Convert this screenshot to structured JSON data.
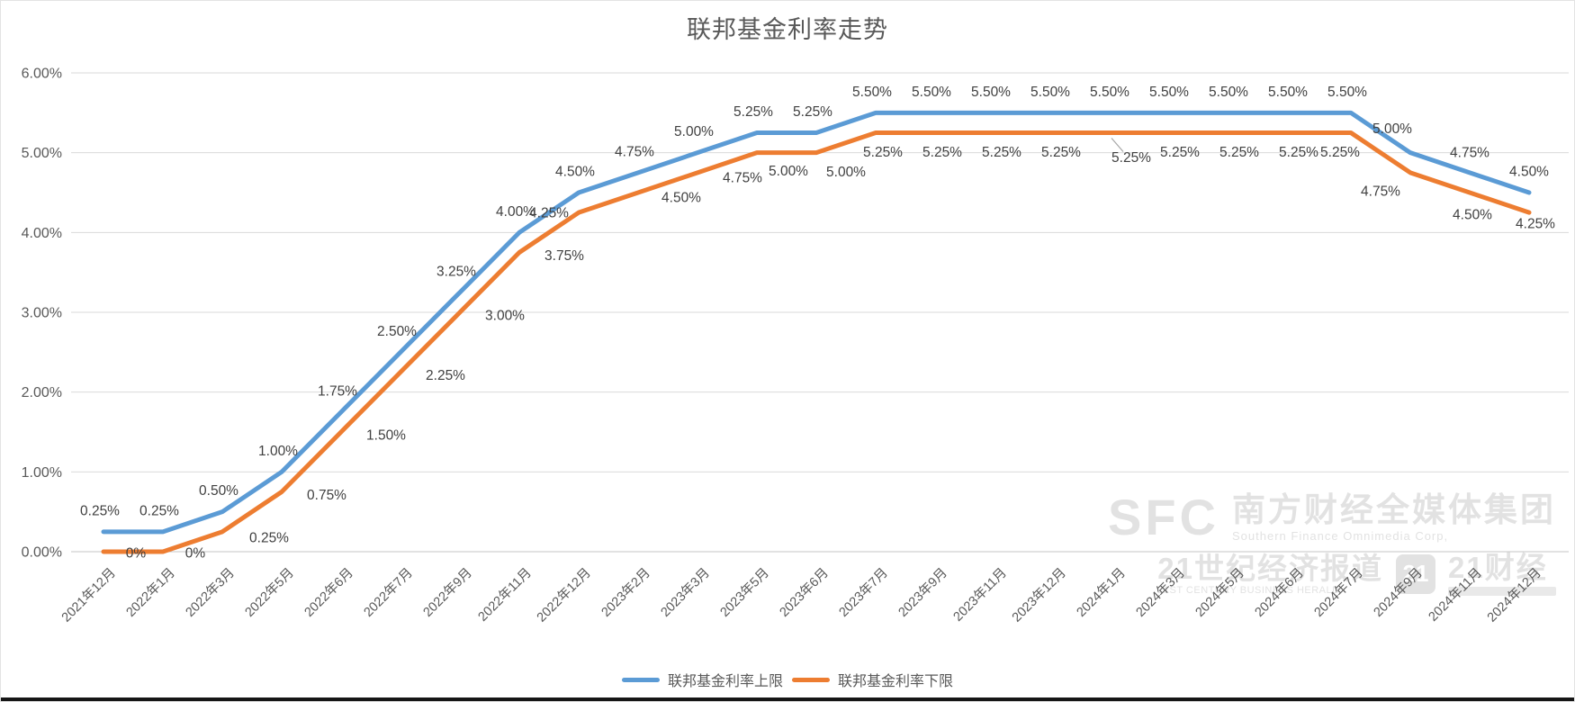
{
  "title": "联邦基金利率走势",
  "chart_data": {
    "type": "line",
    "categories": [
      "2021年12月",
      "2022年1月",
      "2022年3月",
      "2022年5月",
      "2022年6月",
      "2022年7月",
      "2022年9月",
      "2022年11月",
      "2022年12月",
      "2023年2月",
      "2023年3月",
      "2023年5月",
      "2023年6月",
      "2023年7月",
      "2023年9月",
      "2023年11月",
      "2023年12月",
      "2024年1月",
      "2024年3月",
      "2024年5月",
      "2024年6月",
      "2024年7月",
      "2024年9月",
      "2024年11月",
      "2024年12月"
    ],
    "series": [
      {
        "name": "联邦基金利率上限",
        "color": "#5B9BD5",
        "values": [
          0.25,
          0.25,
          0.5,
          1.0,
          1.75,
          2.5,
          3.25,
          4.0,
          4.5,
          4.75,
          5.0,
          5.25,
          5.25,
          5.5,
          5.5,
          5.5,
          5.5,
          5.5,
          5.5,
          5.5,
          5.5,
          5.5,
          5.0,
          4.75,
          4.5
        ],
        "labels": [
          "0.25%",
          "0.25%",
          "0.50%",
          "1.00%",
          "1.75%",
          "2.50%",
          "3.25%",
          "4.00%",
          "4.50%",
          "4.75%",
          "5.00%",
          "5.25%",
          "5.25%",
          "5.50%",
          "5.50%",
          "5.50%",
          "5.50%",
          "5.50%",
          "5.50%",
          "5.50%",
          "5.50%",
          "5.50%",
          "5.00%",
          "4.75%",
          "4.50%"
        ]
      },
      {
        "name": "联邦基金利率下限",
        "color": "#ED7D31",
        "values": [
          0,
          0,
          0.25,
          0.75,
          1.5,
          2.25,
          3.0,
          3.75,
          4.25,
          4.5,
          4.75,
          5.0,
          5.0,
          5.25,
          5.25,
          5.25,
          5.25,
          5.25,
          5.25,
          5.25,
          5.25,
          5.25,
          4.75,
          4.5,
          4.25
        ],
        "labels": [
          "0%",
          "0%",
          "0.25%",
          "0.75%",
          "1.50%",
          "2.25%",
          "3.00%",
          "3.75%",
          "4.25%",
          "4.50%",
          "4.75%",
          "5.00%",
          "5.00%",
          "5.25%",
          "5.25%",
          "5.25%",
          "5.25%",
          "5.25%",
          "5.25%",
          "5.25%",
          "5.25%",
          "5.25%",
          "4.75%",
          "4.50%",
          "4.25%"
        ]
      }
    ],
    "y_ticks": [
      "0.00%",
      "1.00%",
      "2.00%",
      "3.00%",
      "4.00%",
      "5.00%",
      "6.00%"
    ],
    "ylim": [
      0,
      6
    ],
    "grid": true,
    "legend_position": "bottom"
  },
  "legend": {
    "upper": "联邦基金利率上限",
    "lower": "联邦基金利率下限"
  },
  "watermark": {
    "sfc": "SFC",
    "sfc_cn": "南方财经全媒体集团",
    "sfc_en": "Southern Finance Omnimedia Corp,",
    "herald_cn": "21世纪经济报道",
    "herald_en": "21ST CENTURY BUSINESS HERALD",
    "badge_21": "21",
    "app_cn": "21财经"
  },
  "colors": {
    "grid": "#D9D9D9",
    "zero_line": "#C6C6C6",
    "axis_text": "#595959",
    "label_text": "#404040",
    "leader": "#A6A6A6"
  }
}
